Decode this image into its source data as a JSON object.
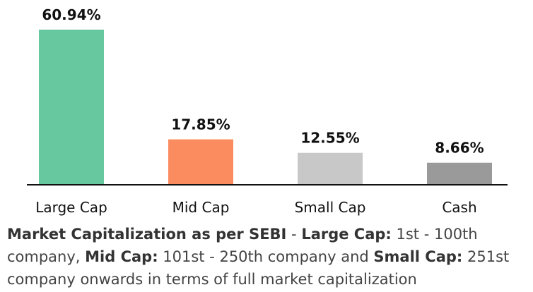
{
  "chart_data": {
    "type": "bar",
    "categories": [
      "Large Cap",
      "Mid Cap",
      "Small Cap",
      "Cash"
    ],
    "values": [
      60.94,
      17.85,
      12.55,
      8.66
    ],
    "value_labels": [
      "60.94%",
      "17.85%",
      "12.55%",
      "8.66%"
    ],
    "colors": [
      "#67c8a0",
      "#fb8c60",
      "#c8c8c8",
      "#9a9a9a"
    ],
    "baseline_color": "#111111",
    "ylim": [
      0,
      60.94
    ],
    "grid": false,
    "legend": "none"
  },
  "footnote": {
    "p1": "Market Capitalization as per SEBI",
    "p2": " - ",
    "p3": "Large Cap:",
    "p4": " 1st - 100th company, ",
    "p5": "Mid Cap:",
    "p6": " 101st - 250th company and ",
    "p7": "Small Cap:",
    "p8": " 251st company onwards in terms of full market capitalization"
  }
}
